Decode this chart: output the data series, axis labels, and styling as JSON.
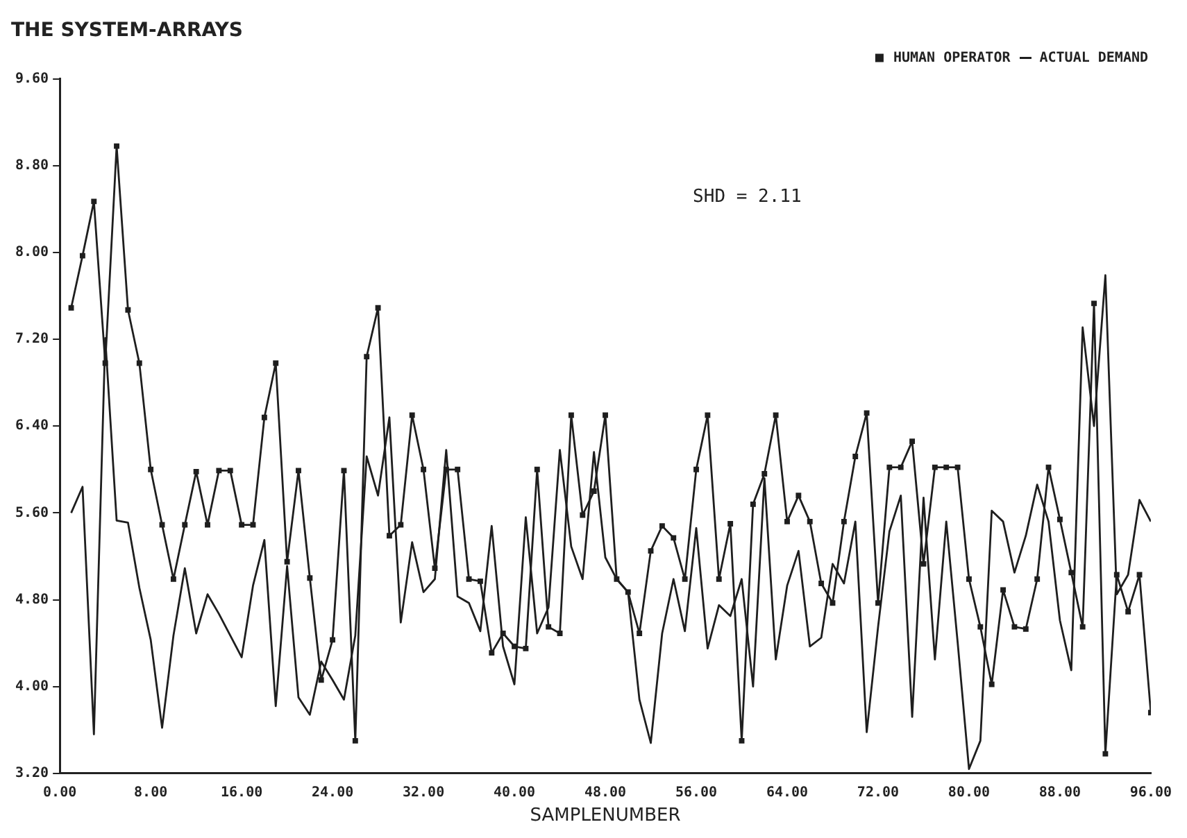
{
  "chart_data": {
    "type": "line",
    "title": "THE SYSTEM-ARRAYS",
    "xlabel": "SAMPLENUMBER",
    "annotations": [
      "SHD = 2.11"
    ],
    "x": [
      1,
      2,
      3,
      4,
      5,
      6,
      7,
      8,
      9,
      10,
      11,
      12,
      13,
      14,
      15,
      16,
      17,
      18,
      19,
      20,
      21,
      22,
      23,
      24,
      25,
      26,
      27,
      28,
      29,
      30,
      31,
      32,
      33,
      34,
      35,
      36,
      37,
      38,
      39,
      40,
      41,
      42,
      43,
      44,
      45,
      46,
      47,
      48,
      49,
      50,
      51,
      52,
      53,
      54,
      55,
      56,
      57,
      58,
      59,
      60,
      61,
      62,
      63,
      64,
      65,
      66,
      67,
      68,
      69,
      70,
      71,
      72,
      73,
      74,
      75,
      76,
      77,
      78,
      79,
      80,
      81,
      82,
      83,
      84,
      85,
      86,
      87,
      88,
      89,
      90,
      91,
      92,
      93,
      94,
      95,
      96
    ],
    "series": [
      {
        "name": "HUMAN OPERATOR",
        "color": "#1e1e1e",
        "marker": "square",
        "values": [
          7.49,
          7.97,
          8.47,
          6.98,
          8.98,
          7.47,
          6.98,
          6.0,
          5.49,
          4.99,
          5.49,
          5.98,
          5.49,
          5.99,
          5.99,
          5.49,
          5.49,
          6.48,
          6.98,
          5.15,
          5.99,
          5.0,
          4.06,
          4.43,
          5.99,
          3.5,
          7.04,
          7.49,
          5.39,
          5.49,
          6.5,
          6.0,
          5.09,
          6.0,
          6.0,
          4.99,
          4.97,
          4.31,
          4.49,
          4.37,
          4.35,
          6.0,
          4.55,
          4.49,
          6.5,
          5.58,
          5.8,
          6.5,
          4.99,
          4.87,
          4.49,
          5.25,
          5.48,
          5.37,
          4.99,
          6.0,
          6.5,
          4.99,
          5.5,
          3.5,
          5.68,
          5.96,
          6.5,
          5.52,
          5.76,
          5.52,
          4.95,
          4.77,
          5.52,
          6.12,
          6.52,
          4.77,
          6.02,
          6.02,
          6.26,
          5.13,
          6.02,
          6.02,
          6.02,
          4.99,
          4.55,
          4.02,
          4.89,
          4.55,
          4.53,
          4.99,
          6.02,
          5.54,
          5.05,
          4.55,
          7.53,
          3.38,
          5.03,
          4.69,
          5.03,
          3.76
        ]
      },
      {
        "name": "ACTUAL DEMAND",
        "color": "#1e1e1e",
        "values": [
          5.6,
          5.84,
          3.56,
          7.21,
          5.53,
          5.51,
          4.91,
          4.43,
          3.62,
          4.47,
          5.09,
          4.49,
          4.85,
          4.67,
          4.47,
          4.27,
          4.93,
          5.35,
          3.82,
          5.11,
          3.9,
          3.74,
          4.23,
          4.06,
          3.88,
          4.47,
          6.12,
          5.76,
          6.48,
          4.59,
          5.33,
          4.87,
          4.99,
          6.18,
          4.83,
          4.77,
          4.51,
          5.48,
          4.37,
          4.02,
          5.56,
          4.49,
          4.73,
          6.18,
          5.29,
          4.99,
          6.16,
          5.19,
          4.99,
          4.87,
          3.88,
          3.48,
          4.49,
          4.99,
          4.51,
          5.46,
          4.35,
          4.75,
          4.65,
          4.99,
          4.0,
          5.92,
          4.25,
          4.93,
          5.25,
          4.37,
          4.45,
          5.13,
          4.95,
          5.52,
          3.58,
          4.55,
          5.43,
          5.76,
          3.72,
          5.74,
          4.25,
          5.52,
          4.41,
          3.24,
          3.5,
          5.62,
          5.52,
          5.05,
          5.39,
          5.86,
          5.52,
          4.61,
          4.15,
          7.31,
          6.4,
          7.79,
          4.85,
          5.03,
          5.72,
          5.52
        ]
      }
    ],
    "xlim": [
      0,
      96
    ],
    "xticks": [
      {
        "value": 0,
        "label": "0.00"
      },
      {
        "value": 8,
        "label": "8.00"
      },
      {
        "value": 16,
        "label": "16.00"
      },
      {
        "value": 24,
        "label": "24.00"
      },
      {
        "value": 32,
        "label": "32.00"
      },
      {
        "value": 40,
        "label": "40.00"
      },
      {
        "value": 48,
        "label": "48.00"
      },
      {
        "value": 56,
        "label": "56.00"
      },
      {
        "value": 64,
        "label": "64.00"
      },
      {
        "value": 72,
        "label": "72.00"
      },
      {
        "value": 80,
        "label": "80.00"
      },
      {
        "value": 88,
        "label": "88.00"
      },
      {
        "value": 96,
        "label": "96.00"
      }
    ],
    "ylim": [
      3.2,
      9.6
    ],
    "yticks": [
      {
        "value": 3.2,
        "label": "3.20"
      },
      {
        "value": 4,
        "label": "4.00"
      },
      {
        "value": 4.8,
        "label": "4.80"
      },
      {
        "value": 5.6,
        "label": "5.60"
      },
      {
        "value": 6.4,
        "label": "6.40"
      },
      {
        "value": 7.2,
        "label": "7.20"
      },
      {
        "value": 8,
        "label": "8.00"
      },
      {
        "value": 8.8,
        "label": "8.80"
      },
      {
        "value": 9.6,
        "label": "9.60"
      }
    ],
    "grid": false,
    "legend": "top right",
    "line_style": "solid"
  }
}
